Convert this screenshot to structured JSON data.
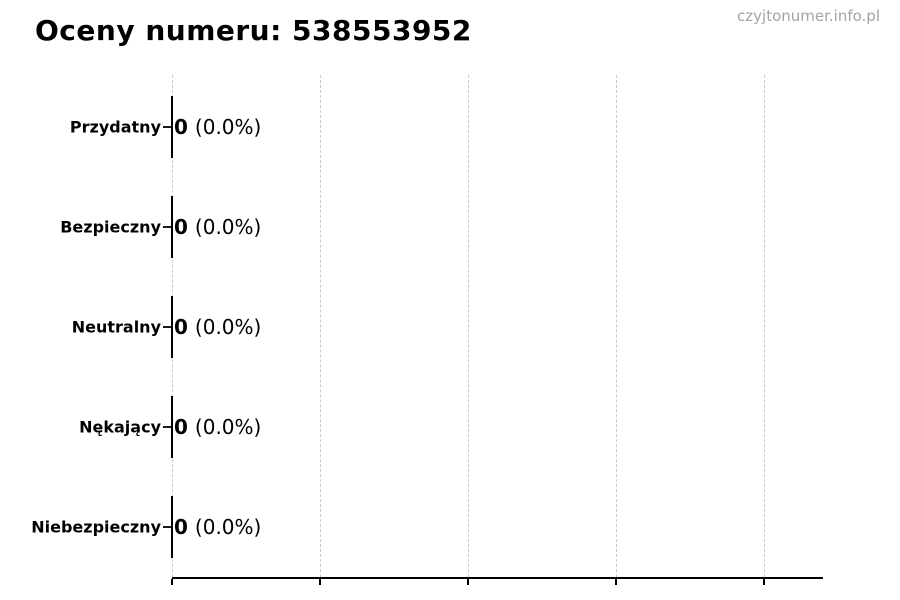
{
  "page": {
    "title": "Oceny numeru: 538553952",
    "watermark": "czyjtonumer.info.pl"
  },
  "colors": {
    "background": "#ffffff",
    "text": "#000000",
    "watermark": "#a3a3a3",
    "gridline": "#c9c9c9",
    "axis": "#000000",
    "bar_edge": "#000000"
  },
  "rows": [
    {
      "label": "Przydatny",
      "count": "0",
      "percent": "(0.0%)"
    },
    {
      "label": "Bezpieczny",
      "count": "0",
      "percent": "(0.0%)"
    },
    {
      "label": "Neutralny",
      "count": "0",
      "percent": "(0.0%)"
    },
    {
      "label": "Nękający",
      "count": "0",
      "percent": "(0.0%)"
    },
    {
      "label": "Niebezpieczny",
      "count": "0",
      "percent": "(0.0%)"
    }
  ],
  "chart_data": {
    "type": "bar",
    "orientation": "horizontal",
    "title": "Oceny numeru: 538553952",
    "categories": [
      "Przydatny",
      "Bezpieczny",
      "Neutralny",
      "Nękający",
      "Niebezpieczny"
    ],
    "values": [
      0,
      0,
      0,
      0,
      0
    ],
    "percentages": [
      0.0,
      0.0,
      0.0,
      0.0,
      0.0
    ],
    "value_labels": [
      "0 (0.0%)",
      "0 (0.0%)",
      "0 (0.0%)",
      "0 (0.0%)",
      "0 (0.0%)"
    ],
    "xlabel": "",
    "ylabel": "",
    "legend": "none",
    "grid": "vertical dashed gridlines at x ticks",
    "x_tick_count": 5,
    "x_tick_labels": [],
    "x_tick_labels_visible": false,
    "bar_style": "zero-width bars drawn as black edge segments"
  }
}
